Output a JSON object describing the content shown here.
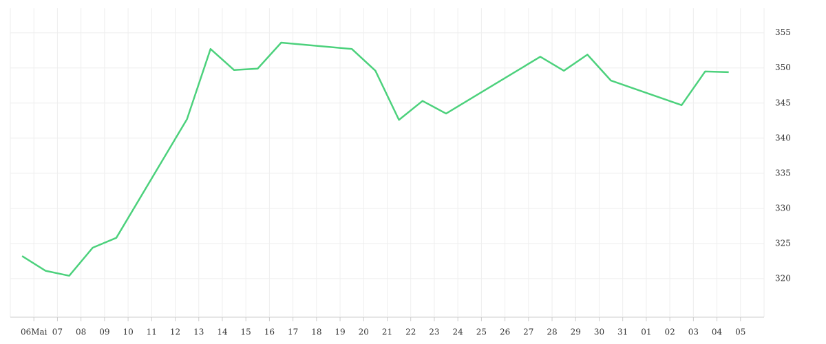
{
  "chart_data": {
    "type": "line",
    "x": [
      -0.5,
      0.5,
      1.5,
      2.5,
      3.5,
      6.5,
      7.5,
      8.5,
      9.5,
      10.5,
      13.5,
      14.5,
      15.5,
      16.5,
      17.5,
      21.5,
      22.5,
      23.5,
      24.5,
      27.5,
      28.5,
      29.5
    ],
    "series": [
      {
        "color": "#4cd17c",
        "values": [
          323.2,
          321.1,
          320.4,
          324.4,
          325.8,
          342.7,
          352.7,
          349.7,
          349.9,
          353.6,
          352.7,
          349.6,
          342.6,
          345.3,
          343.5,
          351.6,
          349.6,
          351.9,
          348.2,
          344.7,
          349.5,
          349.4
        ]
      }
    ],
    "xlim": [
      -1,
      31
    ],
    "xticks": [
      {
        "value": 0,
        "label": "06Mai"
      },
      {
        "value": 1,
        "label": "07"
      },
      {
        "value": 2,
        "label": "08"
      },
      {
        "value": 3,
        "label": "09"
      },
      {
        "value": 4,
        "label": "10"
      },
      {
        "value": 5,
        "label": "11"
      },
      {
        "value": 6,
        "label": "12"
      },
      {
        "value": 7,
        "label": "13"
      },
      {
        "value": 8,
        "label": "14"
      },
      {
        "value": 9,
        "label": "15"
      },
      {
        "value": 10,
        "label": "16"
      },
      {
        "value": 11,
        "label": "17"
      },
      {
        "value": 12,
        "label": "18"
      },
      {
        "value": 13,
        "label": "19"
      },
      {
        "value": 14,
        "label": "20"
      },
      {
        "value": 15,
        "label": "21"
      },
      {
        "value": 16,
        "label": "22"
      },
      {
        "value": 17,
        "label": "23"
      },
      {
        "value": 18,
        "label": "24"
      },
      {
        "value": 19,
        "label": "25"
      },
      {
        "value": 20,
        "label": "26"
      },
      {
        "value": 21,
        "label": "27"
      },
      {
        "value": 22,
        "label": "28"
      },
      {
        "value": 23,
        "label": "29"
      },
      {
        "value": 24,
        "label": "30"
      },
      {
        "value": 25,
        "label": "31"
      },
      {
        "value": 26,
        "label": "01"
      },
      {
        "value": 27,
        "label": "02"
      },
      {
        "value": 28,
        "label": "03"
      },
      {
        "value": 29,
        "label": "04"
      },
      {
        "value": 30,
        "label": "05"
      }
    ],
    "ylim": [
      314.5,
      358.5
    ],
    "yticks": [
      320,
      325,
      330,
      335,
      340,
      345,
      350,
      355
    ],
    "grid": true
  }
}
